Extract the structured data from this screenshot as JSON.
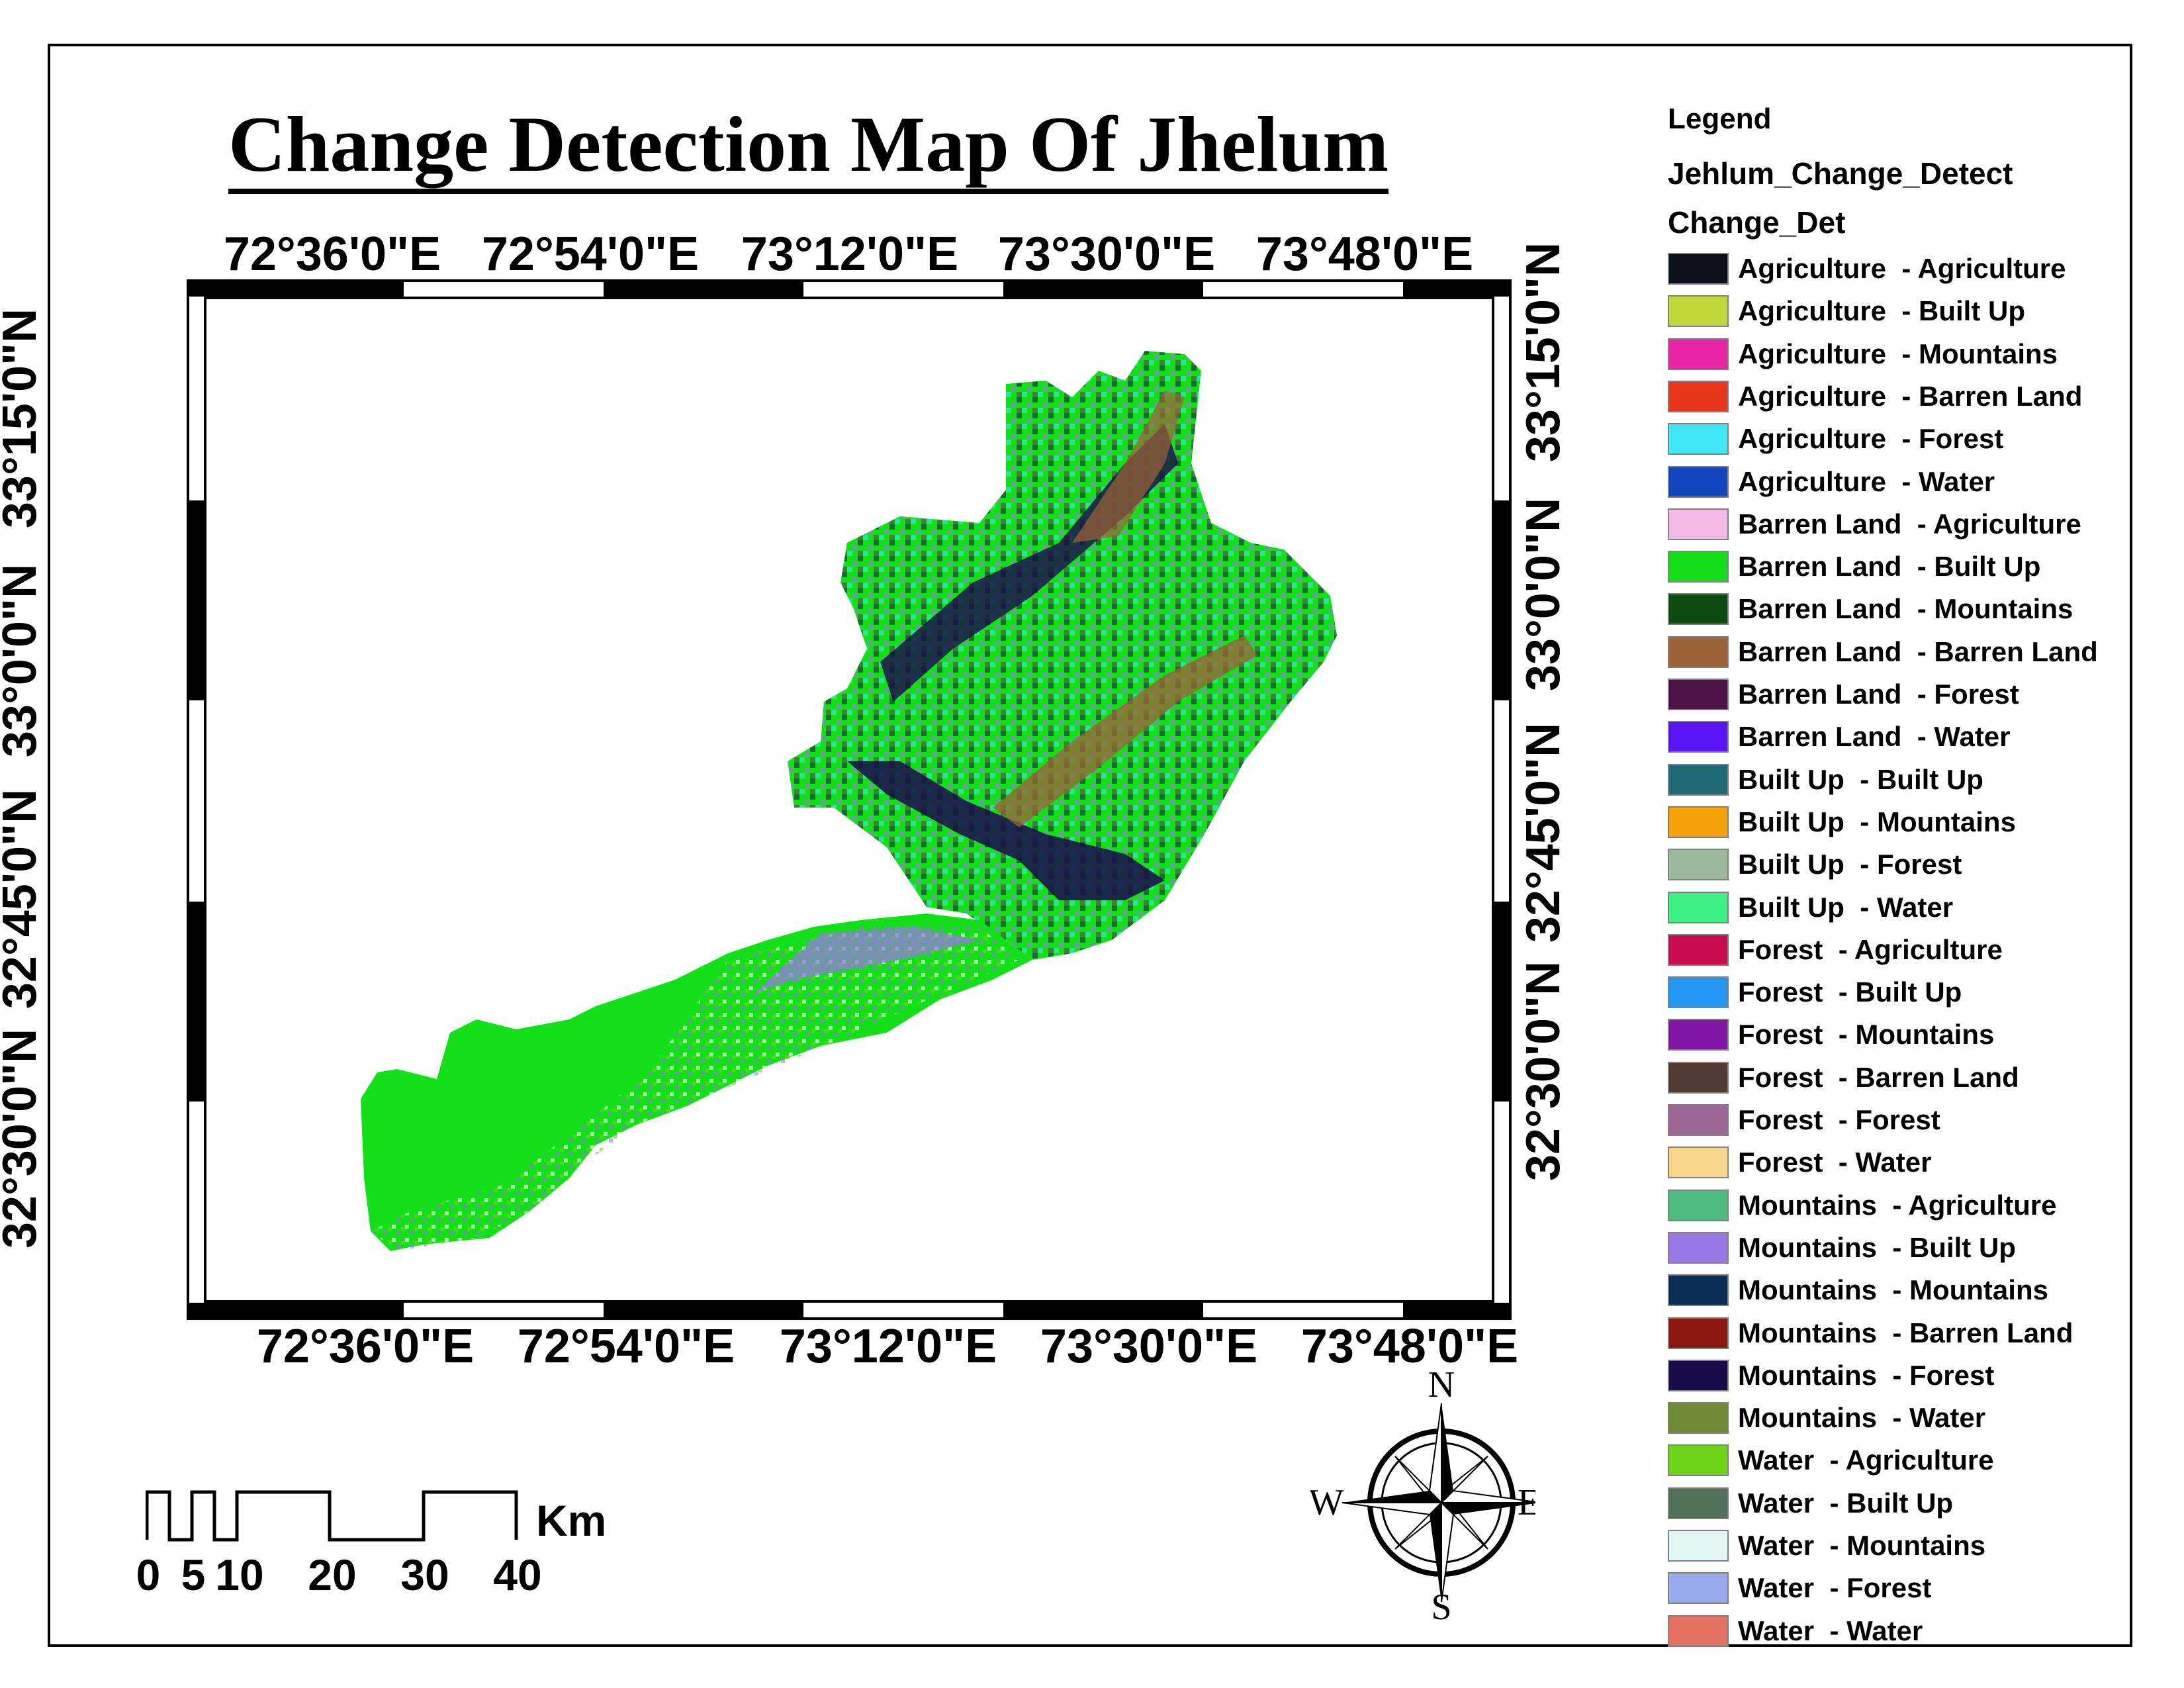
{
  "title": "Change Detection Map Of Jhelum",
  "longitude_labels_top": [
    "72°36'0\"E",
    "72°54'0\"E",
    "73°12'0\"E",
    "73°30'0\"E",
    "73°48'0\"E"
  ],
  "longitude_labels_bottom": [
    "72°36'0\"E",
    "72°54'0\"E",
    "73°12'0\"E",
    "73°30'0\"E",
    "73°48'0\"E"
  ],
  "latitude_labels_left": [
    "33°15'0\"N",
    "33°0'0\"N",
    "32°45'0\"N",
    "32°30'0\"N"
  ],
  "latitude_labels_right": [
    "33°15'0\"N",
    "33°0'0\"N",
    "32°45'0\"N",
    "32°30'0\"N"
  ],
  "legend": {
    "title": "Legend",
    "layer_name": "Jehlum_Change_Detect",
    "field_name": "Change_Det",
    "items": [
      {
        "from": "Agriculture",
        "to": "Agriculture",
        "color": "#0b1018"
      },
      {
        "from": "Agriculture",
        "to": "Built Up",
        "color": "#c0d63a"
      },
      {
        "from": "Agriculture",
        "to": "Mountains",
        "color": "#ea24a6"
      },
      {
        "from": "Agriculture",
        "to": "Barren Land",
        "color": "#e8361a"
      },
      {
        "from": "Agriculture",
        "to": "Forest",
        "color": "#3ee8f6"
      },
      {
        "from": "Agriculture",
        "to": "Water",
        "color": "#1244c0"
      },
      {
        "from": "Barren Land",
        "to": "Agriculture",
        "color": "#f4b8e6"
      },
      {
        "from": "Barren Land",
        "to": "Built Up",
        "color": "#14e01a"
      },
      {
        "from": "Barren Land",
        "to": "Mountains",
        "color": "#0c4a12"
      },
      {
        "from": "Barren Land",
        "to": "Barren Land",
        "color": "#9c6236"
      },
      {
        "from": "Barren Land",
        "to": "Forest",
        "color": "#4e1246"
      },
      {
        "from": "Barren Land",
        "to": "Water",
        "color": "#5a14f4"
      },
      {
        "from": "Built Up",
        "to": "Built Up",
        "color": "#1e6a78"
      },
      {
        "from": "Built Up",
        "to": "Mountains",
        "color": "#f6a00a"
      },
      {
        "from": "Built Up",
        "to": "Forest",
        "color": "#9cb89c"
      },
      {
        "from": "Built Up",
        "to": "Water",
        "color": "#3ef084"
      },
      {
        "from": "Forest",
        "to": "Agriculture",
        "color": "#c80a50"
      },
      {
        "from": "Forest",
        "to": "Built Up",
        "color": "#2496f4"
      },
      {
        "from": "Forest",
        "to": "Mountains",
        "color": "#8214a6"
      },
      {
        "from": "Forest",
        "to": "Barren Land",
        "color": "#533a32"
      },
      {
        "from": "Forest",
        "to": "Forest",
        "color": "#9e6696"
      },
      {
        "from": "Forest",
        "to": "Water",
        "color": "#f8d48c"
      },
      {
        "from": "Mountains",
        "to": "Agriculture",
        "color": "#4cbc80"
      },
      {
        "from": "Mountains",
        "to": "Built Up",
        "color": "#9876e6"
      },
      {
        "from": "Mountains",
        "to": "Mountains",
        "color": "#0a2e56"
      },
      {
        "from": "Mountains",
        "to": "Barren Land",
        "color": "#8e1610"
      },
      {
        "from": "Mountains",
        "to": "Forest",
        "color": "#1a0a4a"
      },
      {
        "from": "Mountains",
        "to": "Water",
        "color": "#6e8a32"
      },
      {
        "from": "Water",
        "to": "Agriculture",
        "color": "#6ed41a"
      },
      {
        "from": "Water",
        "to": "Built Up",
        "color": "#4e7058"
      },
      {
        "from": "Water",
        "to": "Mountains",
        "color": "#e2f6f6"
      },
      {
        "from": "Water",
        "to": "Forest",
        "color": "#98aaec"
      },
      {
        "from": "Water",
        "to": "Water",
        "color": "#e67060"
      }
    ]
  },
  "scale_bar": {
    "labels": [
      "0",
      "5",
      "10",
      "20",
      "30",
      "40"
    ],
    "unit": "Km"
  },
  "north_arrow": {
    "n": "N",
    "e": "E",
    "s": "S",
    "w": "W"
  }
}
